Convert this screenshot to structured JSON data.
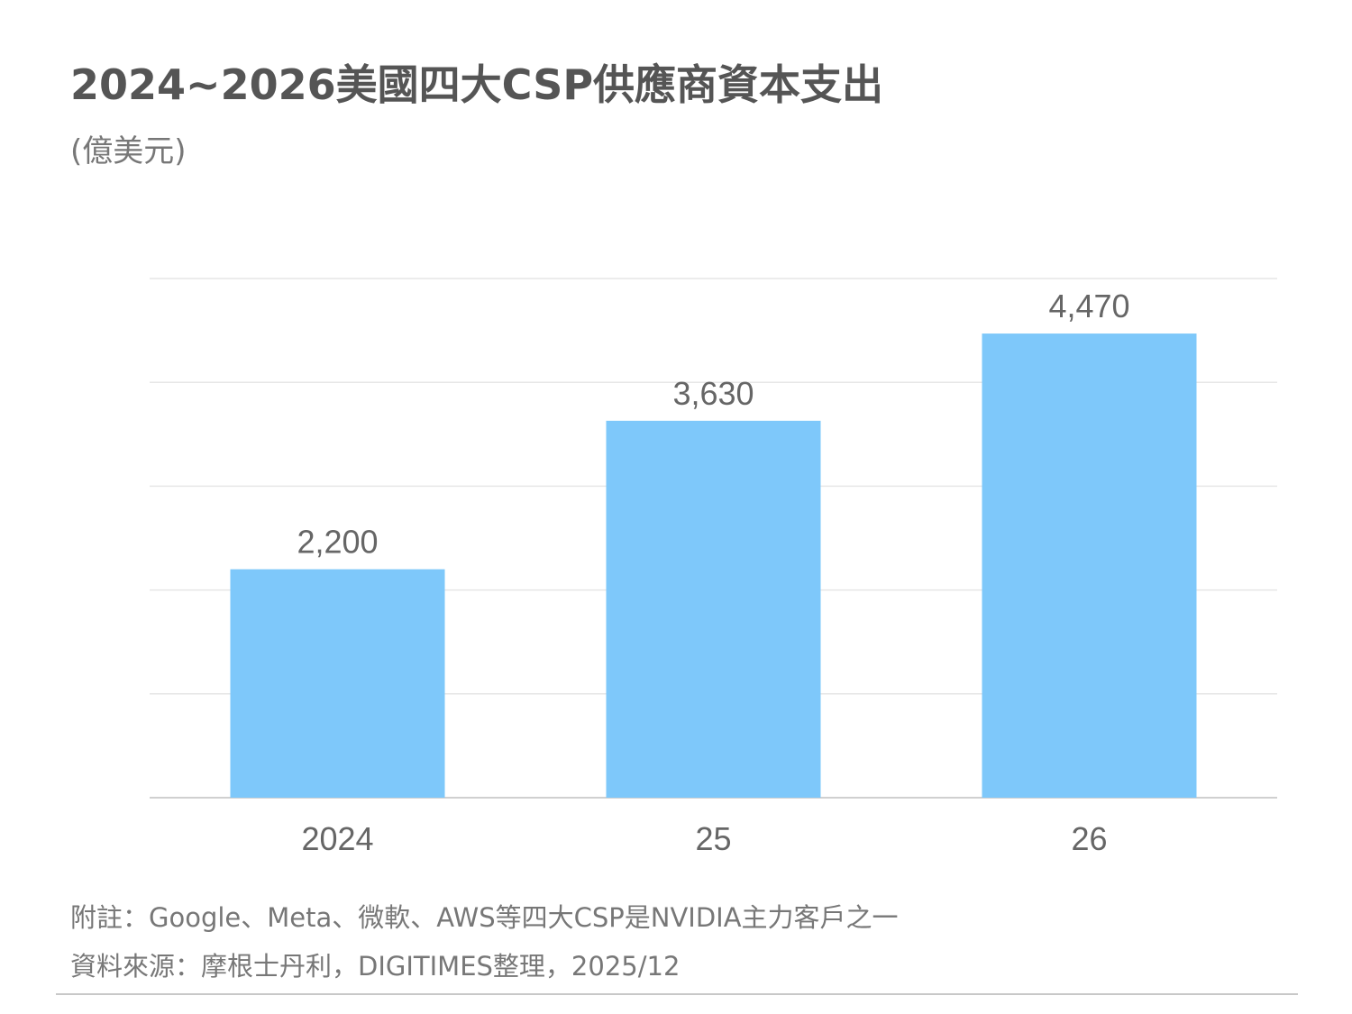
{
  "title": "2024~2026美國四大CSP供應商資本支出",
  "unit": "(億美元)",
  "footnotes": {
    "note": "附註：Google、Meta、微軟、AWS等四大CSP是NVIDIA主力客戶之一",
    "source": "資料來源：摩根士丹利，DIGITIMES整理，2025/12"
  },
  "colors": {
    "bar": "#7ec8fa",
    "grid": "#e6e6e6",
    "axis": "#d0d0d0",
    "text": "#666666"
  },
  "chart_data": {
    "type": "bar",
    "categories": [
      "2024",
      "25",
      "26"
    ],
    "values": [
      2200,
      3630,
      4470
    ],
    "value_labels": [
      "2,200",
      "3,630",
      "4,470"
    ],
    "title": "2024~2026美國四大CSP供應商資本支出",
    "ylabel": "(億美元)",
    "ylim": [
      0,
      5000
    ],
    "grid": true,
    "legend": "none"
  }
}
